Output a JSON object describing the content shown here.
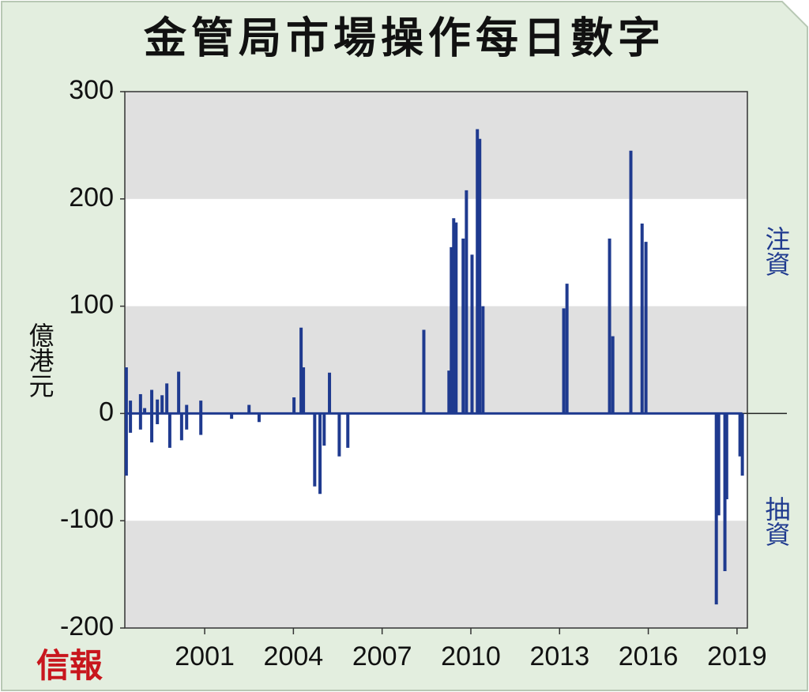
{
  "chart_data": {
    "type": "bar",
    "title": "金管局市場操作每日數字",
    "y_label": "億港元",
    "annotations": [
      "注資",
      "抽資"
    ],
    "source": "信報",
    "x": [
      1998.35,
      1998.35,
      1998.49,
      1998.49,
      1998.83,
      1998.83,
      1998.97,
      1999.21,
      1999.21,
      1999.4,
      1999.4,
      1999.56,
      1999.72,
      1999.82,
      2000.12,
      2000.22,
      2000.39,
      2000.39,
      2000.87,
      2000.87,
      2001.91,
      2002.5,
      2002.84,
      2004.02,
      2004.26,
      2004.34,
      2004.72,
      2004.9,
      2005.04,
      2005.22,
      2005.55,
      2005.84,
      2008.41,
      2009.26,
      2009.34,
      2009.42,
      2009.5,
      2009.74,
      2009.85,
      2010.04,
      2010.22,
      2010.3,
      2010.41,
      2013.14,
      2013.25,
      2014.69,
      2014.8,
      2015.41,
      2015.79,
      2015.92,
      2018.3,
      2018.38,
      2018.59,
      2018.65,
      2019.1,
      2019.18
    ],
    "values": [
      43,
      -58,
      12,
      -18,
      18,
      -15,
      5,
      22,
      -27,
      13,
      -10,
      17,
      28,
      -32,
      39,
      -25,
      8,
      -15,
      12,
      -20,
      -5,
      8,
      -8,
      15,
      80,
      43,
      -68,
      -75,
      -30,
      38,
      -40,
      -32,
      78,
      40,
      155,
      182,
      178,
      163,
      208,
      148,
      265,
      256,
      100,
      98,
      121,
      163,
      72,
      245,
      177,
      160,
      -178,
      -95,
      -147,
      -80,
      -40,
      -58
    ],
    "color": "#1f3a8f",
    "xlim": [
      1998.3,
      2019.35
    ],
    "xticks": [
      2001,
      2004,
      2007,
      2010,
      2013,
      2016,
      2019
    ],
    "ylim": [
      -200,
      300
    ],
    "yticks": [
      -200,
      -100,
      0,
      100,
      200,
      300
    ],
    "grid": true
  }
}
